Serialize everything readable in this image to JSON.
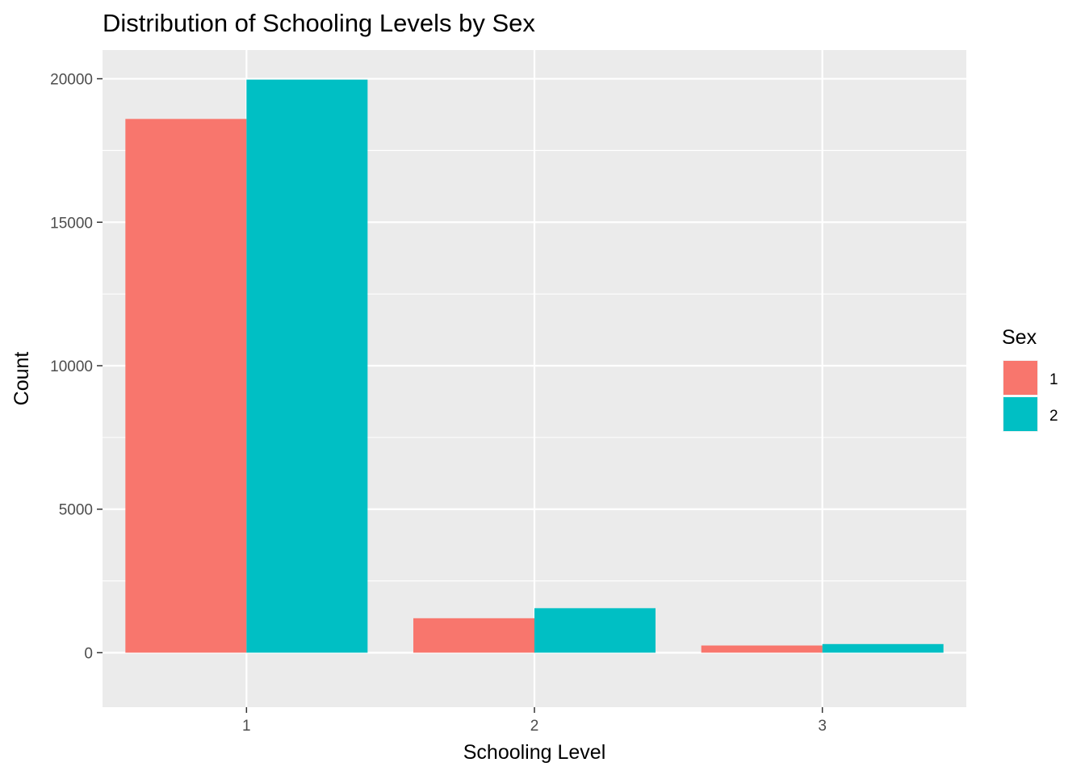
{
  "chart_data": {
    "type": "bar",
    "title": "Distribution of Schooling Levels by Sex",
    "xlabel": "Schooling Level",
    "ylabel": "Count",
    "categories": [
      "1",
      "2",
      "3"
    ],
    "series": [
      {
        "name": "1",
        "color": "#F8766D",
        "values": [
          18600,
          1200,
          250
        ]
      },
      {
        "name": "2",
        "color": "#00BFC4",
        "values": [
          19970,
          1550,
          300
        ]
      }
    ],
    "ylim": [
      -1900,
      21000
    ],
    "yticks": [
      0,
      5000,
      10000,
      15000,
      20000
    ],
    "ytick_labels": [
      "0",
      "5000",
      "10000",
      "15000",
      "20000"
    ],
    "grid": true,
    "panel_background": "#EBEBEB",
    "legend": {
      "title": "Sex",
      "placement": "right"
    }
  }
}
